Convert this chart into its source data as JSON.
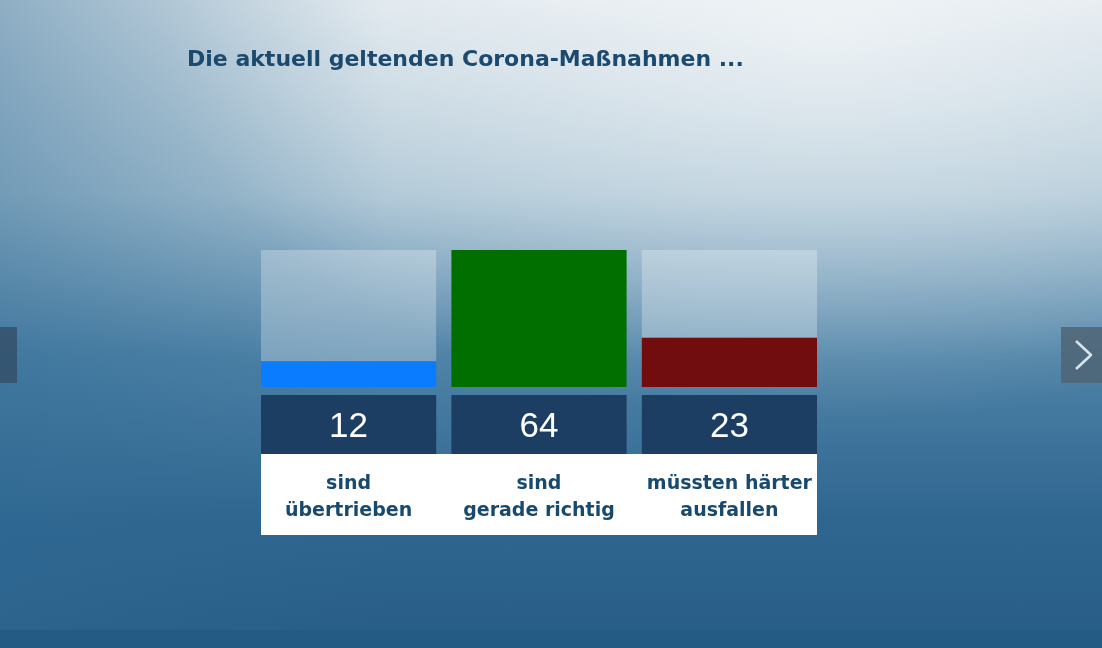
{
  "chart_data": {
    "type": "bar",
    "title": "Die aktuell geltenden Corona-Maßnahmen ...",
    "categories": [
      "sind\nübertrieben",
      "sind\ngerade richtig",
      "müssten härter\nausfallen"
    ],
    "values": [
      12,
      64,
      23
    ],
    "colors": [
      "#0a7cff",
      "#006f00",
      "#720d0f"
    ],
    "data_labels": true
  }
}
